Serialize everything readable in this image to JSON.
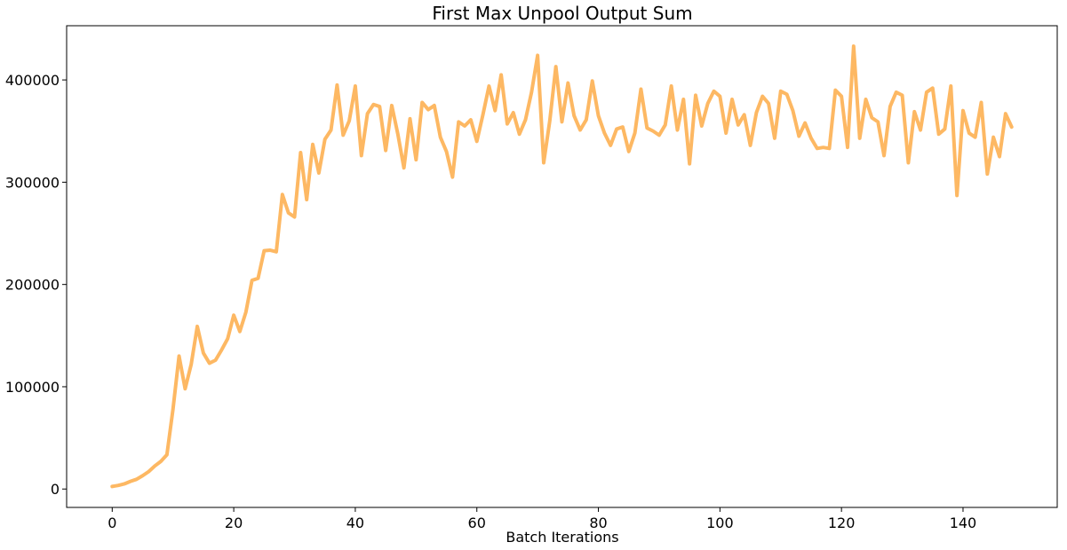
{
  "chart_data": {
    "type": "line",
    "title": "First Max Unpool Output Sum",
    "xlabel": "Batch Iterations",
    "ylabel": "",
    "xlim": [
      -7.5,
      155.5
    ],
    "ylim": [
      -18000,
      453000
    ],
    "xticks": [
      0,
      20,
      40,
      60,
      80,
      100,
      120,
      140
    ],
    "yticks": [
      0,
      100000,
      200000,
      300000,
      400000
    ],
    "grid": false,
    "legend": "none",
    "line_color": "#fdb863",
    "series": [
      {
        "x": [
          0,
          1,
          2,
          3,
          4,
          5,
          6,
          7,
          8,
          9,
          10,
          11,
          12,
          13,
          14,
          15,
          16,
          17,
          18,
          19,
          20,
          21,
          22,
          23,
          24,
          25,
          26,
          27,
          28,
          29,
          30,
          31,
          32,
          33,
          34,
          35,
          36,
          37,
          38,
          39,
          40,
          41,
          42,
          43,
          44,
          45,
          46,
          47,
          48,
          49,
          50,
          51,
          52,
          53,
          54,
          55,
          56,
          57,
          58,
          59,
          60,
          61,
          62,
          63,
          64,
          65,
          66,
          67,
          68,
          69,
          70,
          71,
          72,
          73,
          74,
          75,
          76,
          77,
          78,
          79,
          80,
          81,
          82,
          83,
          84,
          85,
          86,
          87,
          88,
          89,
          90,
          91,
          92,
          93,
          94,
          95,
          96,
          97,
          98,
          99,
          100,
          101,
          102,
          103,
          104,
          105,
          106,
          107,
          108,
          109,
          110,
          111,
          112,
          113,
          114,
          115,
          116,
          117,
          118,
          119,
          120,
          121,
          122,
          123,
          124,
          125,
          126,
          127,
          128,
          129,
          130,
          131,
          132,
          133,
          134,
          135,
          136,
          137,
          138,
          139,
          140,
          141,
          142,
          143,
          144,
          145,
          146,
          147,
          148
        ],
        "values": [
          2500,
          3500,
          5000,
          7500,
          9500,
          13000,
          17000,
          22500,
          27000,
          33500,
          78000,
          130000,
          98000,
          122000,
          159000,
          133000,
          123000,
          126000,
          136000,
          147000,
          170000,
          154000,
          173000,
          204000,
          206000,
          233000,
          233500,
          232000,
          288000,
          270000,
          266000,
          329000,
          283000,
          337000,
          309000,
          342000,
          351000,
          395000,
          346000,
          360000,
          394000,
          326000,
          367000,
          376000,
          374000,
          331000,
          375000,
          347000,
          314000,
          362000,
          322000,
          378000,
          371000,
          375000,
          344000,
          330000,
          305000,
          359000,
          355000,
          361000,
          340000,
          366000,
          394000,
          370000,
          405000,
          357000,
          368000,
          347000,
          361000,
          388000,
          424000,
          319000,
          360000,
          413000,
          359000,
          397000,
          365000,
          351000,
          361000,
          399000,
          365000,
          348000,
          336000,
          352000,
          354000,
          330000,
          348000,
          391000,
          353000,
          350000,
          346000,
          356000,
          394000,
          351000,
          381000,
          318000,
          385000,
          355000,
          377000,
          389000,
          384000,
          348000,
          381000,
          356000,
          366000,
          336000,
          368000,
          384000,
          377000,
          343000,
          389000,
          386000,
          370000,
          345000,
          358000,
          343000,
          333000,
          334000,
          333000,
          390000,
          384000,
          334000,
          433000,
          343000,
          381000,
          363000,
          359000,
          326000,
          374000,
          388000,
          385000,
          319000,
          369000,
          351000,
          388000,
          392000,
          347000,
          352000,
          394000,
          287000,
          370000,
          348000,
          344000,
          378000,
          308000,
          344000,
          325000,
          367000,
          354000
        ]
      }
    ]
  }
}
